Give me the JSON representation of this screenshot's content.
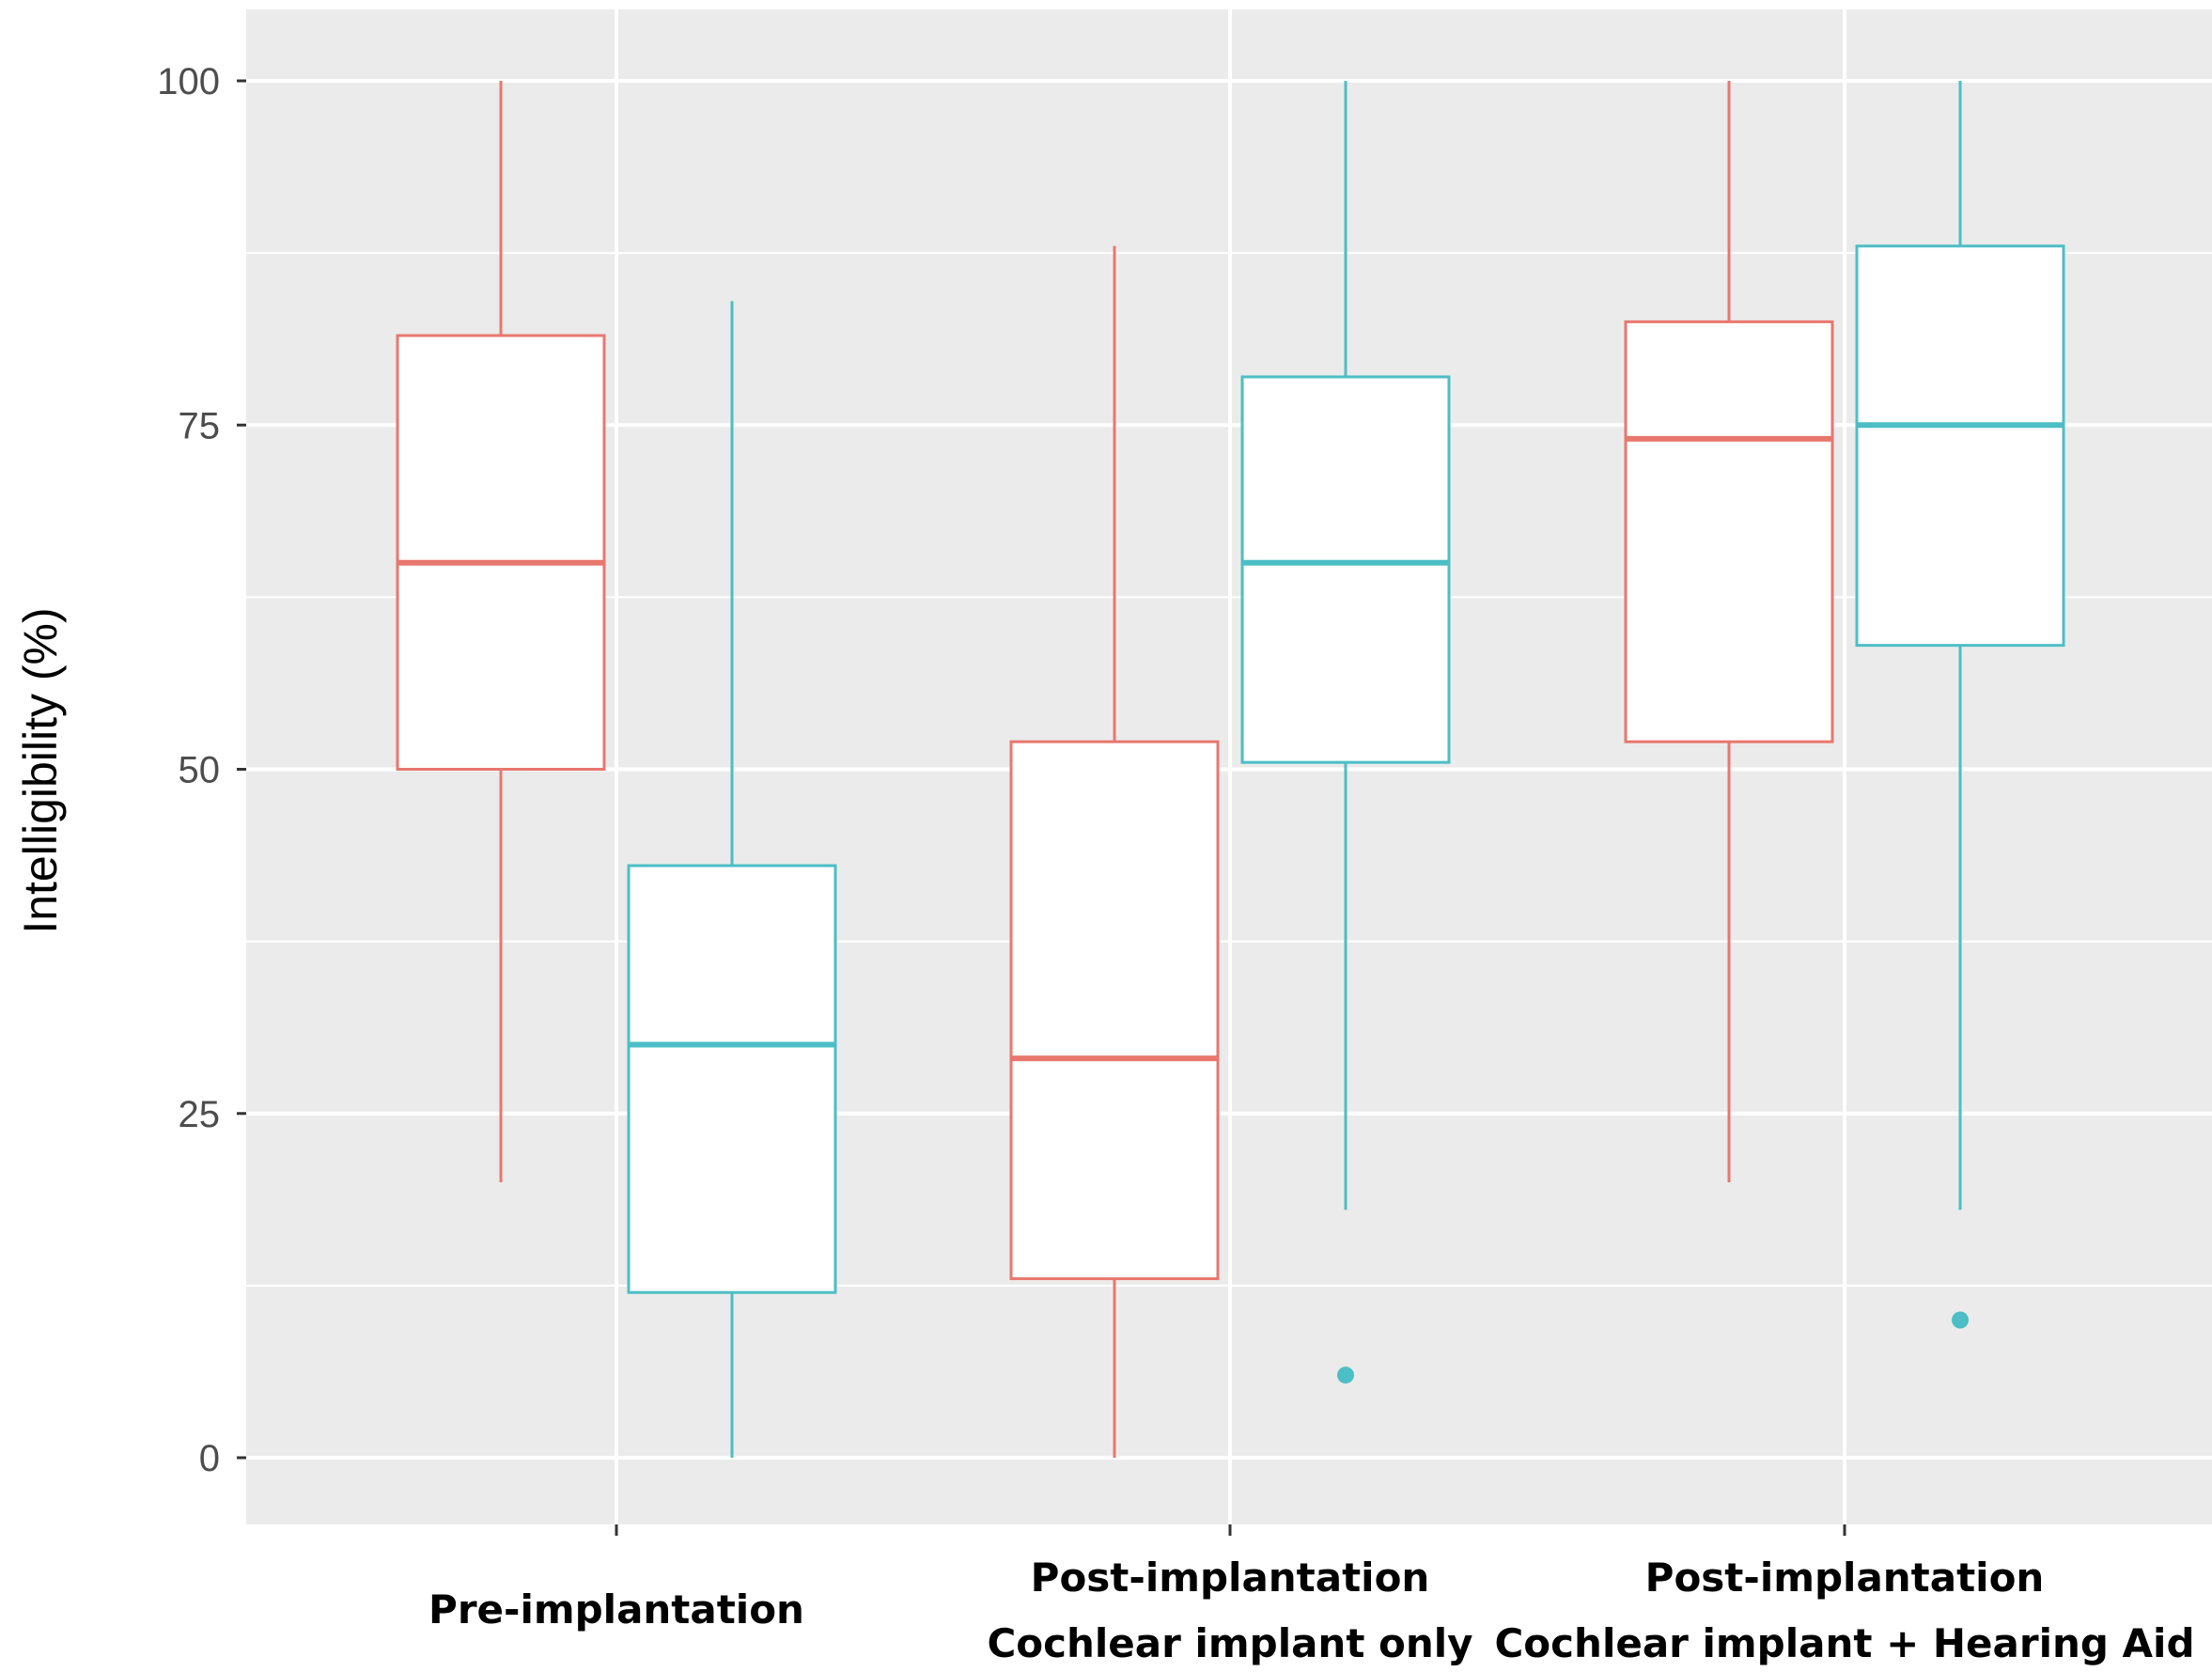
{
  "chart_data": {
    "type": "boxplot",
    "ylabel": "Intelligibility (%)",
    "ylim": [
      -5,
      105
    ],
    "yticks": [
      "0",
      "25",
      "50",
      "75",
      "100"
    ],
    "grid": true,
    "legend": "none",
    "categories": [
      {
        "lines": [
          "Pre-implantation"
        ]
      },
      {
        "lines": [
          "Post-implantation",
          "Cochlear implant only"
        ]
      },
      {
        "lines": [
          "Post-implantation",
          "Cochlear implant + Hearing Aid"
        ]
      }
    ],
    "series": [
      {
        "color": "#e8776e",
        "boxes": [
          {
            "min": 20,
            "q1": 50,
            "median": 65,
            "q3": 81.5,
            "max": 100,
            "outliers": []
          },
          {
            "min": 0,
            "q1": 13,
            "median": 29,
            "q3": 52,
            "max": 88,
            "outliers": []
          },
          {
            "min": 20,
            "q1": 52,
            "median": 74,
            "q3": 82.5,
            "max": 100,
            "outliers": []
          }
        ]
      },
      {
        "color": "#4cbec5",
        "boxes": [
          {
            "min": 0,
            "q1": 12,
            "median": 30,
            "q3": 43,
            "max": 84,
            "outliers": []
          },
          {
            "min": 18,
            "q1": 50.5,
            "median": 65,
            "q3": 78.5,
            "max": 100,
            "outliers": [
              6
            ]
          },
          {
            "min": 18,
            "q1": 59,
            "median": 75,
            "q3": 88,
            "max": 100,
            "outliers": [
              10
            ]
          }
        ]
      }
    ]
  },
  "style": {
    "panel_bg": "#ebebeb",
    "grid_color": "#ffffff",
    "axis_tick_color": "#333333"
  }
}
